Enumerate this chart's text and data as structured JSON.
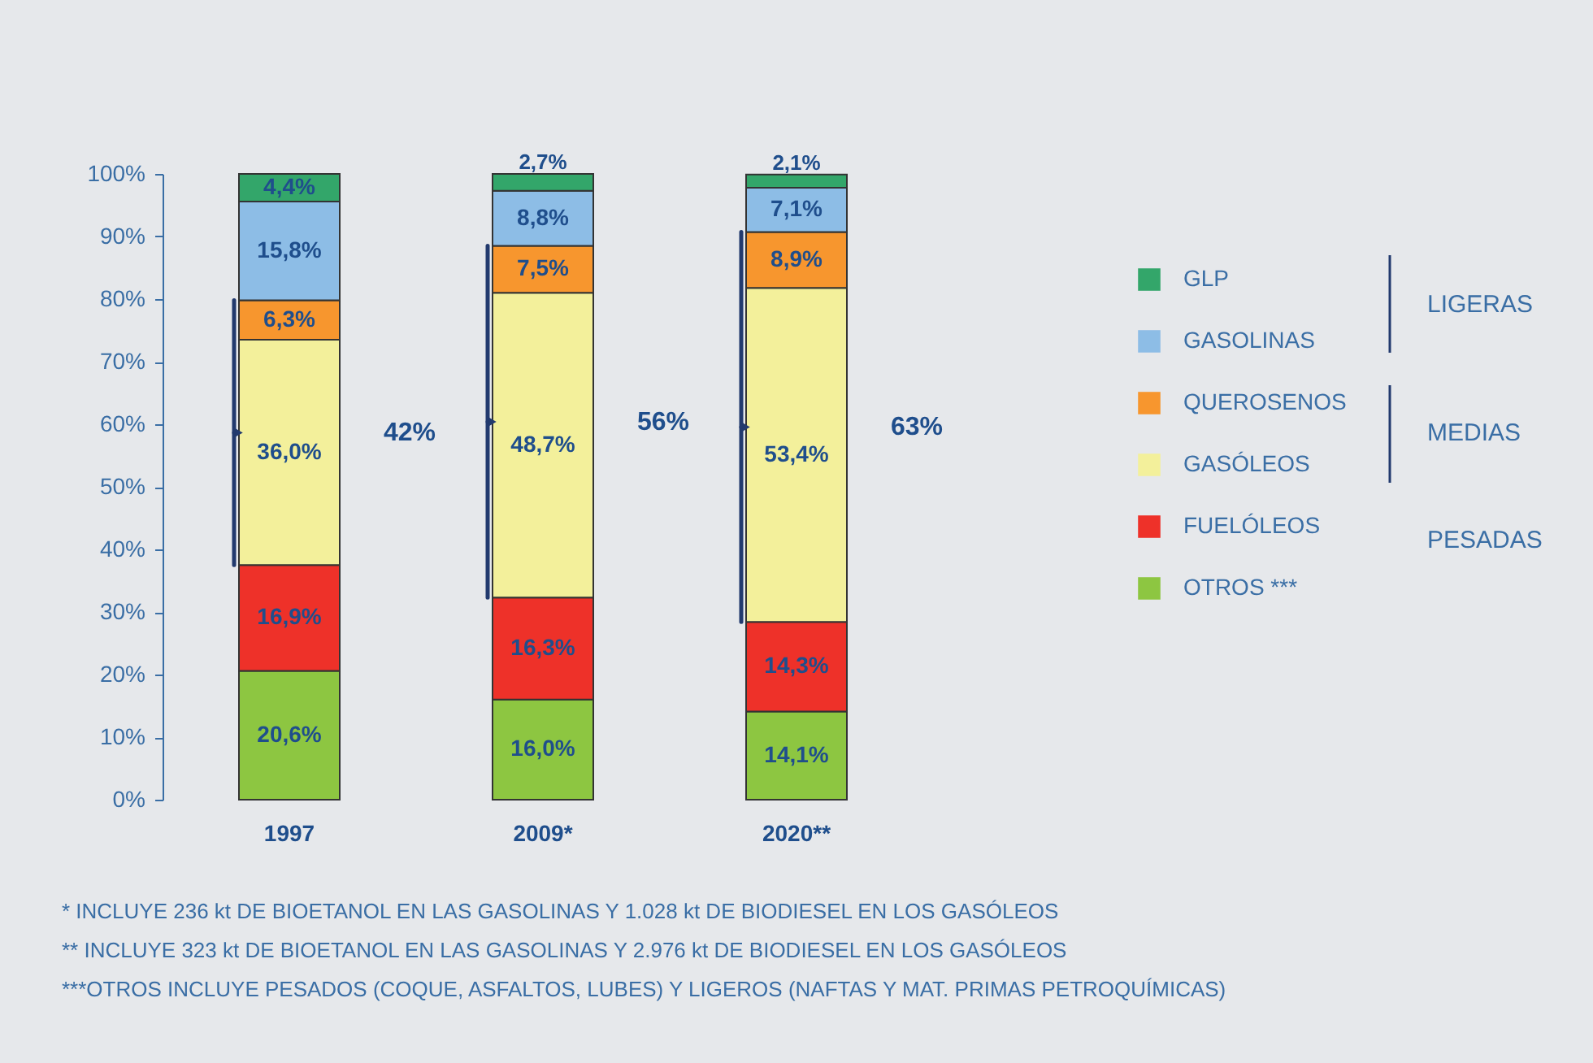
{
  "chart_data": {
    "type": "bar",
    "stacked": true,
    "categories": [
      "1997",
      "2009*",
      "2020**"
    ],
    "ylim": [
      0,
      100
    ],
    "yticks": [
      {
        "value": 0,
        "label": "0%"
      },
      {
        "value": 10,
        "label": "10%"
      },
      {
        "value": 20,
        "label": "20%"
      },
      {
        "value": 30,
        "label": "30%"
      },
      {
        "value": 40,
        "label": "40%"
      },
      {
        "value": 50,
        "label": "50%"
      },
      {
        "value": 60,
        "label": "60%"
      },
      {
        "value": 70,
        "label": "70%"
      },
      {
        "value": 80,
        "label": "80%"
      },
      {
        "value": 90,
        "label": "90%"
      },
      {
        "value": 100,
        "label": "100%"
      }
    ],
    "grid": false,
    "legend": "right",
    "series": [
      {
        "name": "OTROS ***",
        "color": "#8dc641",
        "values": [
          20.6,
          16.0,
          14.1
        ],
        "value_labels": [
          "20,6%",
          "16,0%",
          "14,1%"
        ]
      },
      {
        "name": "FUELÓLEOS",
        "color": "#ee3129",
        "values": [
          16.9,
          16.3,
          14.3
        ],
        "value_labels": [
          "16,9%",
          "16,3%",
          "14,3%"
        ]
      },
      {
        "name": "GASÓLEOS",
        "color": "#f3f09b",
        "values": [
          36.0,
          48.7,
          53.4
        ],
        "value_labels": [
          "36,0%",
          "48,7%",
          "53,4%"
        ]
      },
      {
        "name": "QUEROSENOS",
        "color": "#f7962e",
        "values": [
          6.3,
          7.5,
          8.9
        ],
        "value_labels": [
          "6,3%",
          "7,5%",
          "8,9%"
        ]
      },
      {
        "name": "GASOLINAS",
        "color": "#8dbde6",
        "values": [
          15.8,
          8.8,
          7.1
        ],
        "value_labels": [
          "15,8%",
          "8,8%",
          "7,1%"
        ]
      },
      {
        "name": "GLP",
        "color": "#33a66a",
        "values": [
          4.4,
          2.7,
          2.1
        ],
        "value_labels": [
          "4,4%",
          "2,7%",
          "2,1%"
        ]
      }
    ],
    "annotations": [
      "42%",
      "56%",
      "63%",
      "LIGERAS",
      "MEDIAS",
      "PESADAS",
      "*  INCLUYE 236 kt DE BIOETANOL EN LAS GASOLINAS Y 1.028 kt DE BIODIESEL EN LOS GASÓLEOS",
      "** INCLUYE 323 kt DE BIOETANOL EN LAS GASOLINAS Y 2.976 kt DE BIODIESEL EN LOS GASÓLEOS",
      "***OTROS INCLUYE PESADOS (COQUE, ASFALTOS, LUBES) Y LIGEROS (NAFTAS Y MAT. PRIMAS PETROQUÍMICAS)"
    ]
  }
}
